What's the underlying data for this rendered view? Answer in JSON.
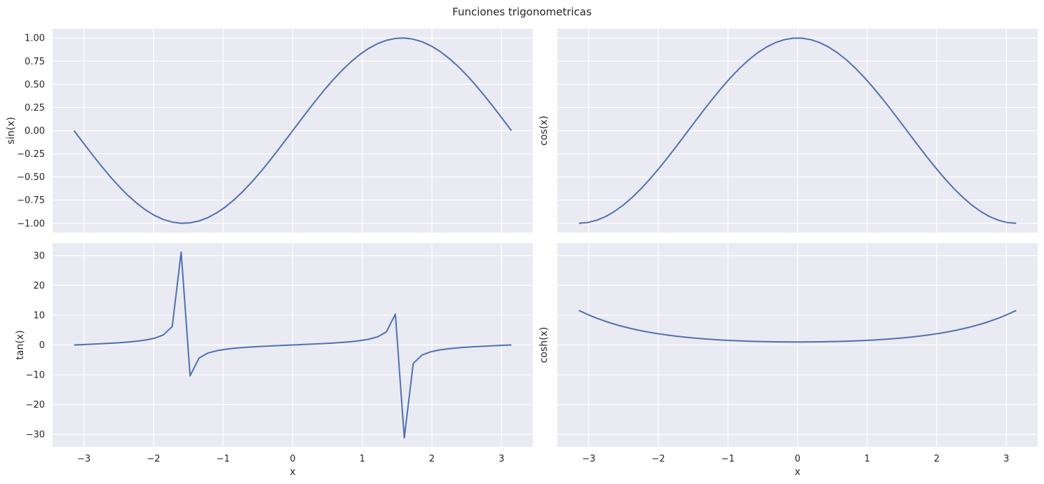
{
  "figure": {
    "title": "Funciones trigonometricas",
    "line_color": "#4c72b0",
    "background": "#eaeaf2",
    "grid_color": "#ffffff"
  },
  "chart_data": [
    {
      "type": "line",
      "panel": "top-left",
      "ylabel": "sin(x)",
      "xlabel": "",
      "function": "sin",
      "x_range": [
        -3.14159,
        3.14159
      ],
      "num_points": 50,
      "xlim": [
        -3.45,
        3.45
      ],
      "ylim": [
        -1.1,
        1.1
      ],
      "xticks": [
        -3,
        -2,
        -1,
        0,
        1,
        2,
        3
      ],
      "yticks": [
        -1.0,
        -0.75,
        -0.5,
        -0.25,
        0.0,
        0.25,
        0.5,
        0.75,
        1.0
      ],
      "xtick_labels": [],
      "ytick_labels": [
        "−1.00",
        "−0.75",
        "−0.50",
        "−0.25",
        "0.00",
        "0.25",
        "0.50",
        "0.75",
        "1.00"
      ],
      "grid": true
    },
    {
      "type": "line",
      "panel": "top-right",
      "ylabel": "cos(x)",
      "xlabel": "",
      "function": "cos",
      "x_range": [
        -3.14159,
        3.14159
      ],
      "num_points": 50,
      "xlim": [
        -3.45,
        3.45
      ],
      "ylim": [
        -1.1,
        1.1
      ],
      "xticks": [
        -3,
        -2,
        -1,
        0,
        1,
        2,
        3
      ],
      "yticks": [
        -1.0,
        -0.75,
        -0.5,
        -0.25,
        0.0,
        0.25,
        0.5,
        0.75,
        1.0
      ],
      "xtick_labels": [],
      "ytick_labels": [],
      "grid": true
    },
    {
      "type": "line",
      "panel": "bottom-left",
      "ylabel": "tan(x)",
      "xlabel": "x",
      "function": "tan",
      "x_range": [
        -3.14159,
        3.14159
      ],
      "num_points": 50,
      "xlim": [
        -3.45,
        3.45
      ],
      "ylim": [
        -34.2,
        34.2
      ],
      "xticks": [
        -3,
        -2,
        -1,
        0,
        1,
        2,
        3
      ],
      "yticks": [
        -30,
        -20,
        -10,
        0,
        10,
        20,
        30
      ],
      "xtick_labels": [
        "−3",
        "−2",
        "−1",
        "0",
        "1",
        "2",
        "3"
      ],
      "ytick_labels": [
        "−30",
        "−20",
        "−10",
        "0",
        "10",
        "20",
        "30"
      ],
      "grid": true
    },
    {
      "type": "line",
      "panel": "bottom-right",
      "ylabel": "cosh(x)",
      "xlabel": "x",
      "function": "cosh",
      "x_range": [
        -3.14159,
        3.14159
      ],
      "num_points": 50,
      "xlim": [
        -3.45,
        3.45
      ],
      "ylim": [
        -34.2,
        34.2
      ],
      "xticks": [
        -3,
        -2,
        -1,
        0,
        1,
        2,
        3
      ],
      "yticks": [
        -30,
        -20,
        -10,
        0,
        10,
        20,
        30
      ],
      "xtick_labels": [
        "−3",
        "−2",
        "−1",
        "0",
        "1",
        "2",
        "3"
      ],
      "ytick_labels": [],
      "grid": true
    }
  ]
}
